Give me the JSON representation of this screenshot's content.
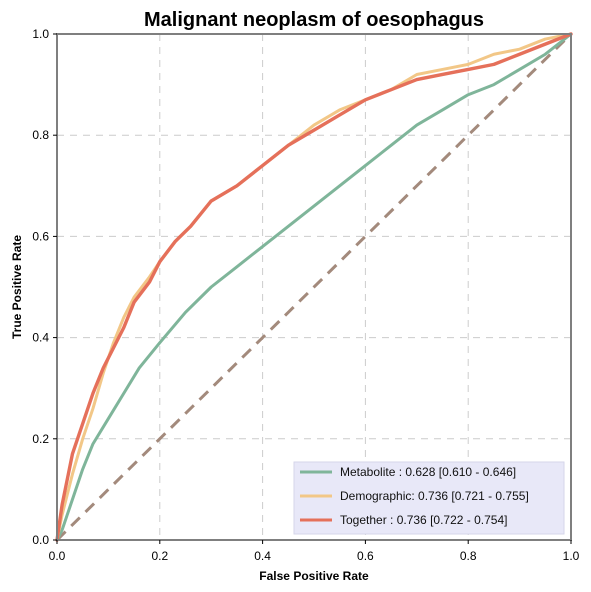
{
  "chart_data": {
    "type": "line",
    "title": "Malignant neoplasm of oesophagus",
    "xlabel": "False Positive Rate",
    "ylabel": "True Positive Rate",
    "xlim": [
      0,
      1
    ],
    "ylim": [
      0,
      1
    ],
    "xticks": [
      "0.0",
      "0.2",
      "0.4",
      "0.6",
      "0.8",
      "1.0"
    ],
    "yticks": [
      "0.0",
      "0.2",
      "0.4",
      "0.6",
      "0.8",
      "1.0"
    ],
    "grid": true,
    "legend_position": "bottom-right",
    "series": [
      {
        "name": "Metabolite",
        "label": "Metabolite     : 0.628 [0.610 - 0.646]",
        "color": "#7fb59a",
        "x": [
          0.0,
          0.01,
          0.02,
          0.03,
          0.05,
          0.07,
          0.1,
          0.13,
          0.16,
          0.2,
          0.25,
          0.3,
          0.35,
          0.4,
          0.45,
          0.5,
          0.55,
          0.6,
          0.65,
          0.7,
          0.75,
          0.8,
          0.85,
          0.9,
          0.95,
          1.0
        ],
        "y": [
          0.0,
          0.02,
          0.05,
          0.08,
          0.14,
          0.19,
          0.24,
          0.29,
          0.34,
          0.39,
          0.45,
          0.5,
          0.54,
          0.58,
          0.62,
          0.66,
          0.7,
          0.74,
          0.78,
          0.82,
          0.85,
          0.88,
          0.9,
          0.93,
          0.96,
          1.0
        ]
      },
      {
        "name": "Demographic",
        "label": "Demographic: 0.736 [0.721 - 0.755]",
        "color": "#f2c787",
        "x": [
          0.0,
          0.01,
          0.02,
          0.03,
          0.05,
          0.07,
          0.09,
          0.11,
          0.13,
          0.15,
          0.18,
          0.2,
          0.23,
          0.26,
          0.3,
          0.35,
          0.4,
          0.45,
          0.5,
          0.55,
          0.6,
          0.65,
          0.7,
          0.75,
          0.8,
          0.85,
          0.9,
          0.95,
          1.0
        ],
        "y": [
          0.0,
          0.05,
          0.09,
          0.13,
          0.2,
          0.26,
          0.33,
          0.39,
          0.44,
          0.48,
          0.52,
          0.55,
          0.59,
          0.62,
          0.67,
          0.7,
          0.74,
          0.78,
          0.82,
          0.85,
          0.87,
          0.89,
          0.92,
          0.93,
          0.94,
          0.96,
          0.97,
          0.99,
          1.0
        ]
      },
      {
        "name": "Together",
        "label": "Together       : 0.736 [0.722 - 0.754]",
        "color": "#e5705a",
        "x": [
          0.0,
          0.01,
          0.02,
          0.03,
          0.05,
          0.07,
          0.09,
          0.11,
          0.13,
          0.15,
          0.18,
          0.2,
          0.23,
          0.26,
          0.3,
          0.35,
          0.4,
          0.45,
          0.5,
          0.55,
          0.6,
          0.65,
          0.7,
          0.75,
          0.8,
          0.85,
          0.9,
          0.95,
          1.0
        ],
        "y": [
          0.0,
          0.07,
          0.12,
          0.17,
          0.23,
          0.29,
          0.34,
          0.38,
          0.42,
          0.47,
          0.51,
          0.55,
          0.59,
          0.62,
          0.67,
          0.7,
          0.74,
          0.78,
          0.81,
          0.84,
          0.87,
          0.89,
          0.91,
          0.92,
          0.93,
          0.94,
          0.96,
          0.98,
          1.0
        ]
      }
    ],
    "reference_line": {
      "x": [
        0,
        1
      ],
      "y": [
        0,
        1
      ],
      "color": "#a38a7c"
    }
  }
}
